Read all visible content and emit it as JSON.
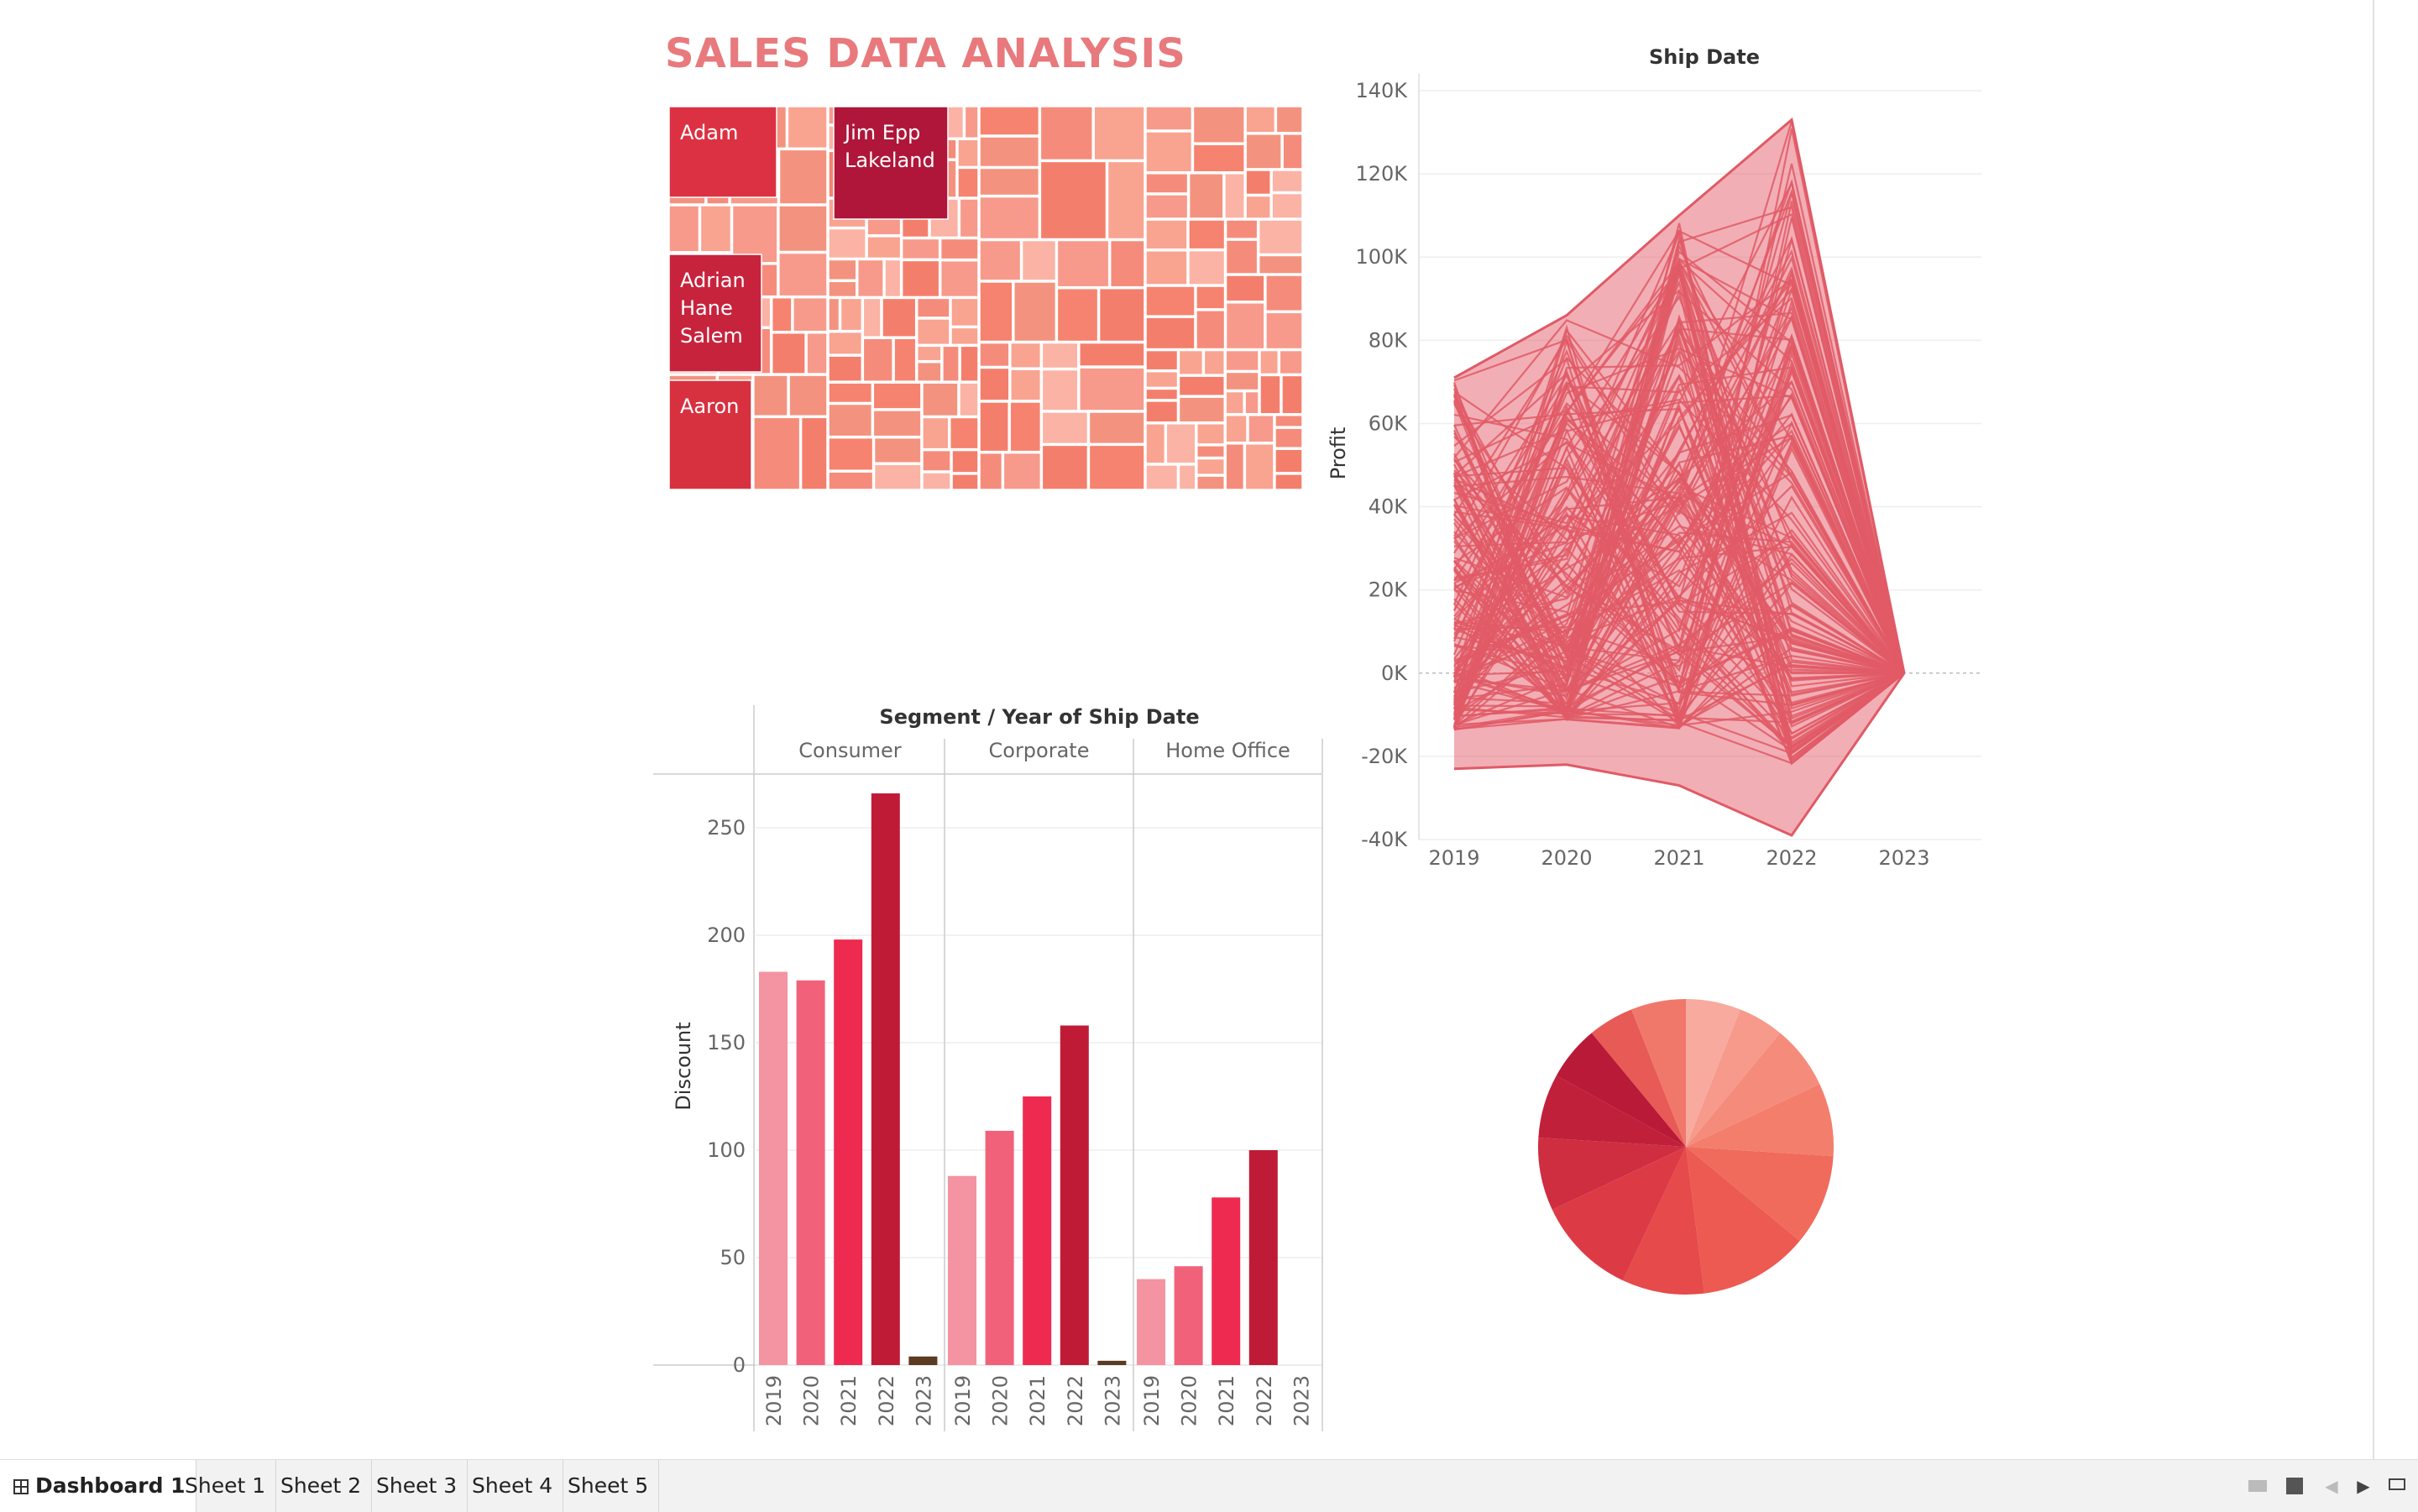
{
  "dashboard": {
    "title": "SALES DATA ANALYSIS"
  },
  "colors": {
    "title": "#e8797c",
    "accent": "#e05a66",
    "dark_red": "#b0163a",
    "salmon": "#f47e6c",
    "light": "#f9a391"
  },
  "treemap": {
    "labels": [
      "Adam",
      "Jim Epp Lakeland",
      "Adrian Hane Salem",
      "Aaron"
    ]
  },
  "line_chart_data": {
    "type": "line",
    "title": "Ship Date",
    "ylabel": "Profit",
    "x": [
      "2019",
      "2020",
      "2021",
      "2022",
      "2023"
    ],
    "ylim": [
      -40000,
      140000
    ],
    "yticks": [
      "140K",
      "120K",
      "100K",
      "80K",
      "60K",
      "40K",
      "20K",
      "0K",
      "-20K",
      "-40K"
    ],
    "ytick_values": [
      140000,
      120000,
      100000,
      80000,
      60000,
      40000,
      20000,
      0,
      -20000,
      -40000
    ],
    "envelope_max": [
      71000,
      86000,
      110000,
      133000,
      0
    ],
    "envelope_min": [
      -23000,
      -22000,
      -27000,
      -39000,
      0
    ],
    "grid": true
  },
  "chart_data": {
    "type": "bar",
    "title": "Segment / Year of Ship Date",
    "ylabel": "Discount",
    "segments": [
      "Consumer",
      "Corporate",
      "Home Office"
    ],
    "categories": [
      "2019",
      "2020",
      "2021",
      "2022",
      "2023"
    ],
    "series": [
      {
        "name": "Consumer",
        "values": [
          183,
          179,
          198,
          266,
          4
        ]
      },
      {
        "name": "Corporate",
        "values": [
          88,
          109,
          125,
          158,
          2
        ]
      },
      {
        "name": "Home Office",
        "values": [
          40,
          46,
          78,
          100,
          0
        ]
      }
    ],
    "year_colors": [
      "#f493a2",
      "#f2617a",
      "#ee2a50",
      "#c01b36",
      "#5b3b22"
    ],
    "ylim": [
      0,
      275
    ],
    "yticks": [
      0,
      50,
      100,
      150,
      200,
      250
    ],
    "grid": true
  },
  "pie": {
    "slices": [
      0.06,
      0.05,
      0.07,
      0.08,
      0.1,
      0.12,
      0.09,
      0.11,
      0.08,
      0.07,
      0.06,
      0.05,
      0.06
    ],
    "colors": [
      "#f8aa9f",
      "#f79a8b",
      "#f58c7b",
      "#f47e6c",
      "#f06b5c",
      "#ec5a52",
      "#e64a4a",
      "#dc3b45",
      "#cf2d40",
      "#c0203a",
      "#b91a37",
      "#e85a55",
      "#f0786a"
    ]
  },
  "tabs": [
    "Dashboard 1",
    "Sheet 1",
    "Sheet 2",
    "Sheet 3",
    "Sheet 4",
    "Sheet 5"
  ]
}
